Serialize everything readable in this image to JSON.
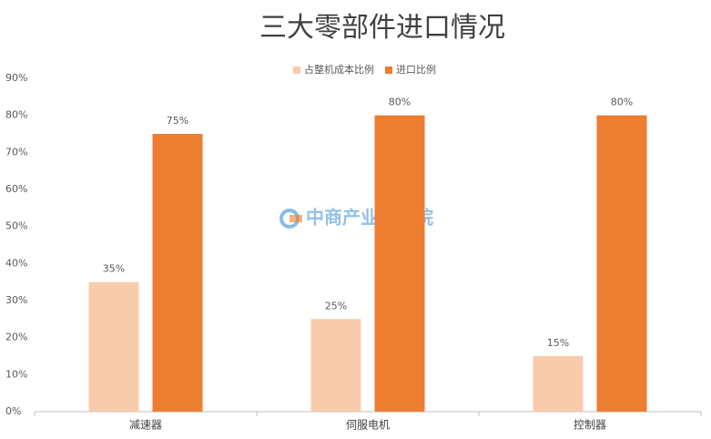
{
  "chart_data": {
    "type": "bar",
    "title": "三大零部件进口情况",
    "watermark": "中商产业研究院",
    "categories": [
      "减速器",
      "伺服电机",
      "控制器"
    ],
    "series": [
      {
        "name": "占整机成本比例",
        "color": "#f8cbad",
        "values": [
          35,
          25,
          15
        ],
        "value_labels": [
          "35%",
          "25%",
          "15%"
        ]
      },
      {
        "name": "进口比例",
        "color": "#ed7d31",
        "values": [
          75,
          80,
          80
        ],
        "value_labels": [
          "75%",
          "80%",
          "80%"
        ]
      }
    ],
    "ylim": [
      0,
      90
    ],
    "yticks": [
      {
        "value": 0,
        "label": "0%"
      },
      {
        "value": 10,
        "label": "10%"
      },
      {
        "value": 20,
        "label": "20%"
      },
      {
        "value": 30,
        "label": "30%"
      },
      {
        "value": 40,
        "label": "40%"
      },
      {
        "value": 50,
        "label": "50%"
      },
      {
        "value": 60,
        "label": "60%"
      },
      {
        "value": 70,
        "label": "70%"
      },
      {
        "value": 80,
        "label": "80%"
      },
      {
        "value": 90,
        "label": "90%"
      }
    ],
    "grid": false,
    "legend": "top"
  }
}
